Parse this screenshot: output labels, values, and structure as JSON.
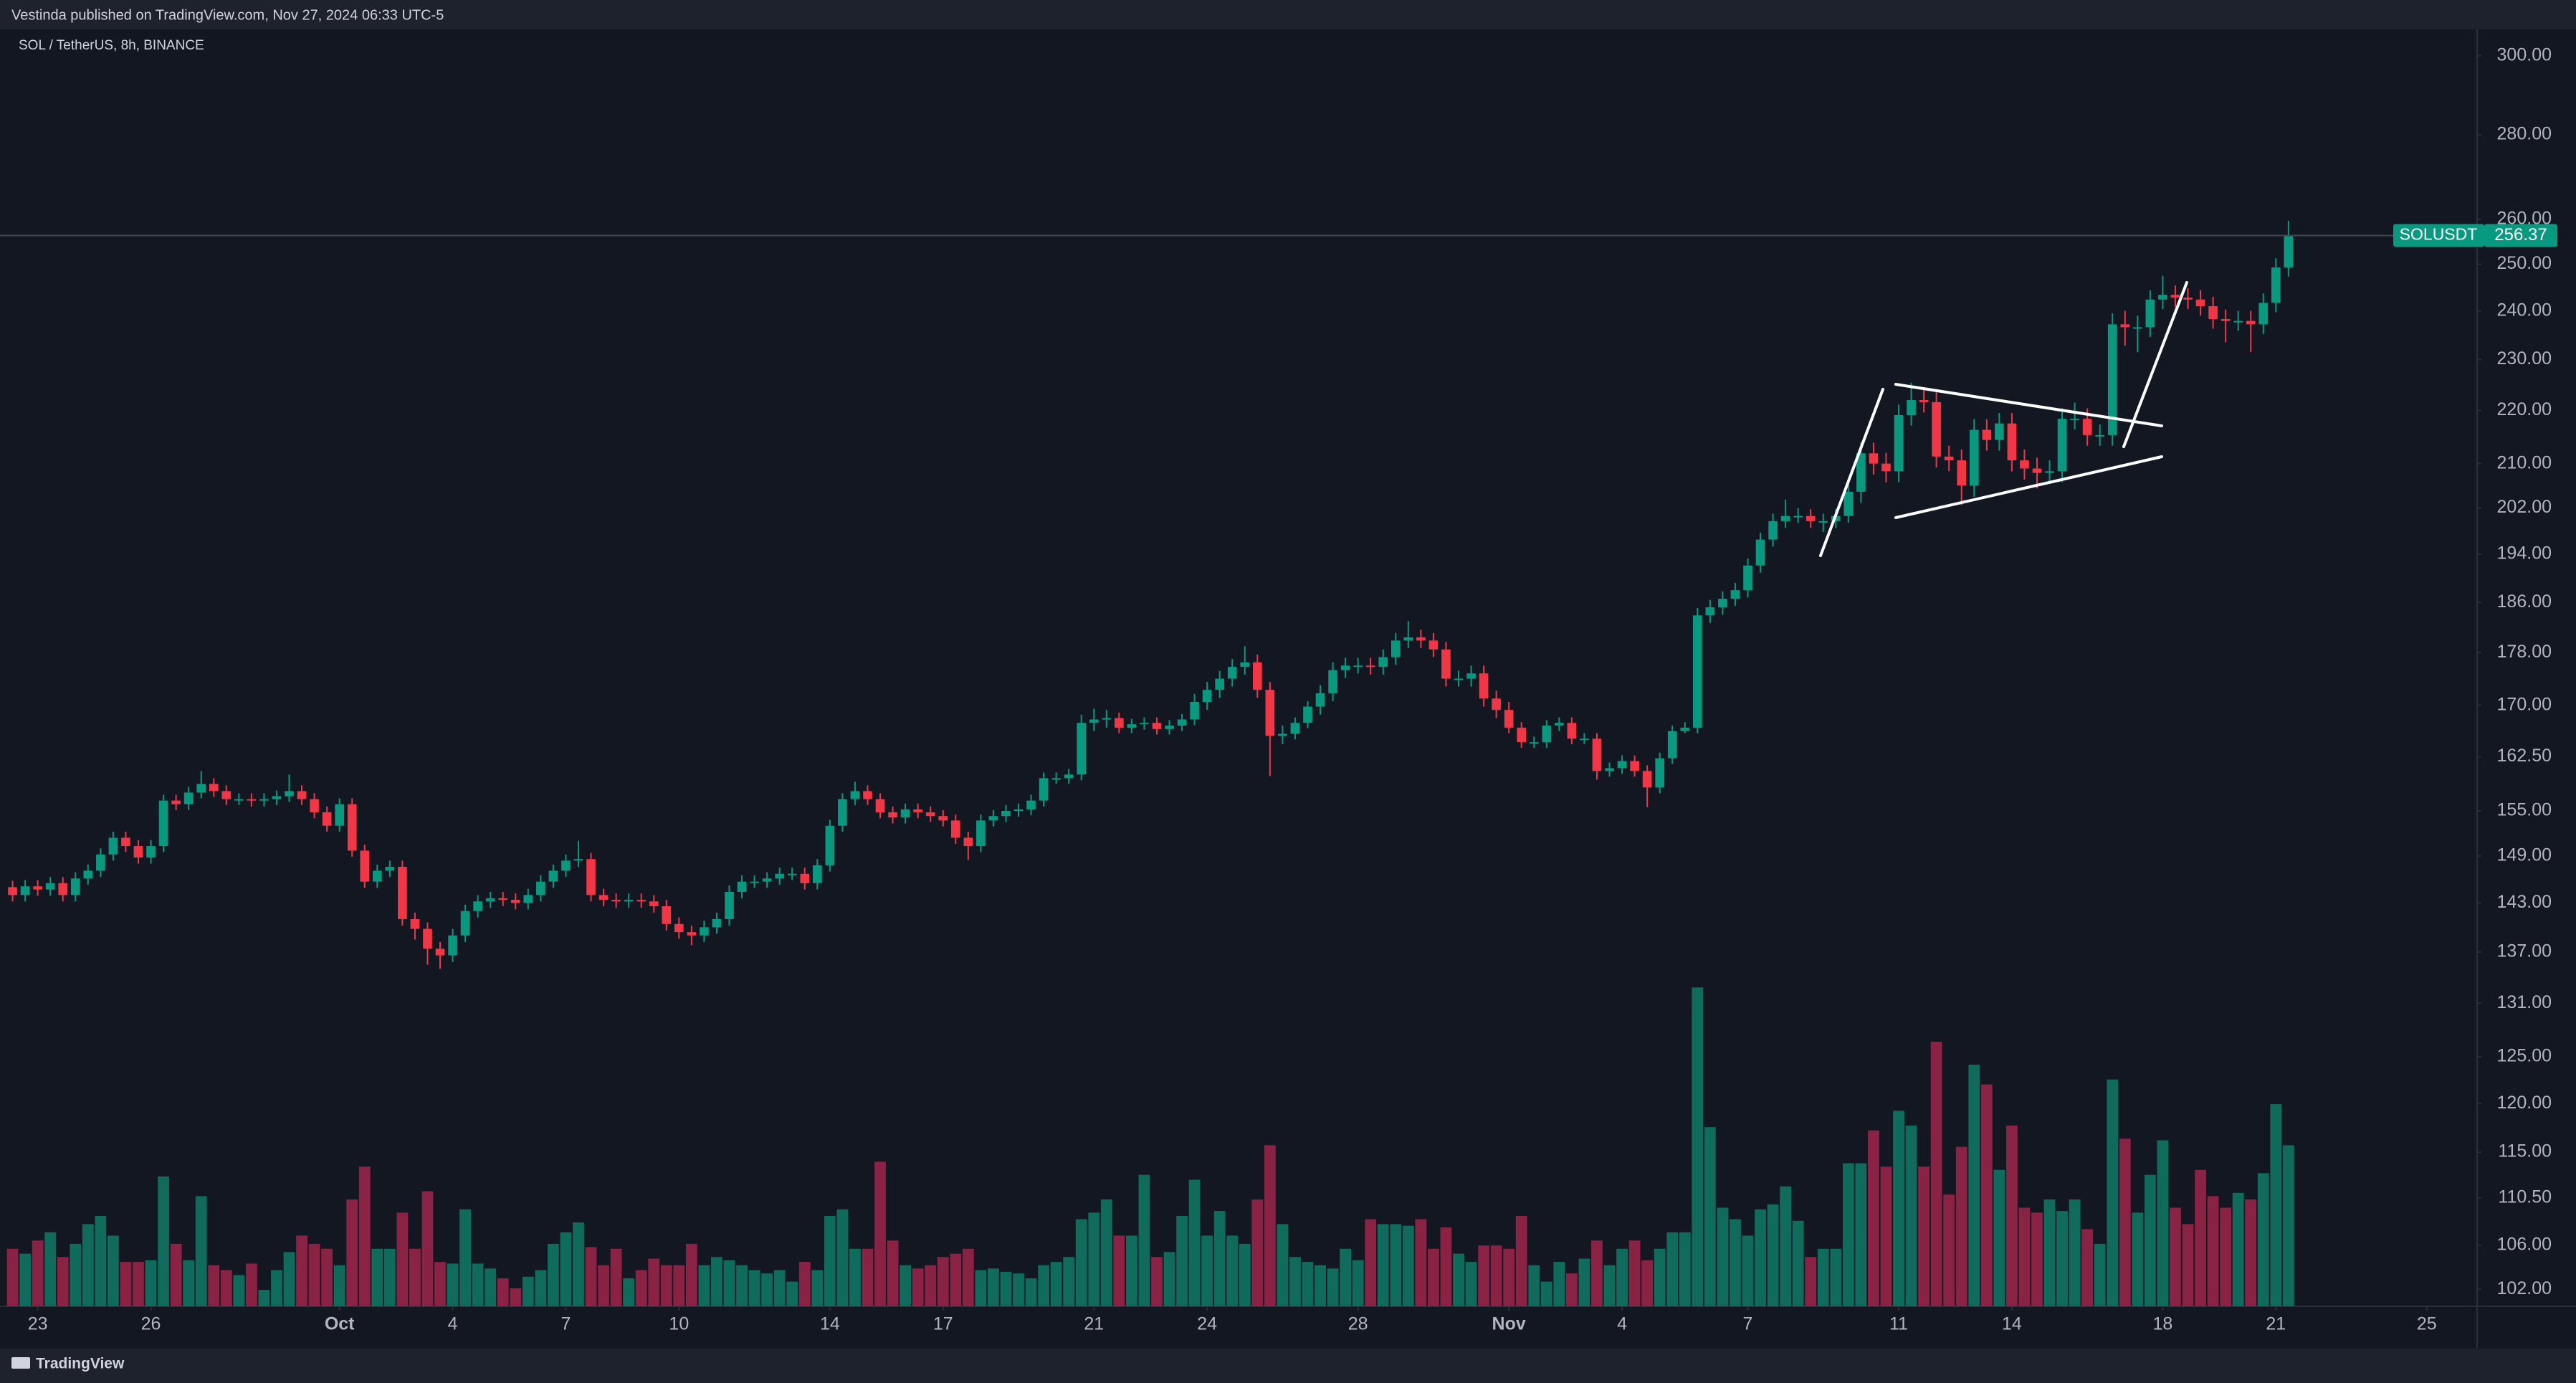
{
  "header": {
    "attribution": "Vestinda published on TradingView.com, Nov 27, 2024 06:33 UTC-5"
  },
  "chart_data": {
    "type": "candlestick",
    "title": "SOL / TetherUS, 8h, BINANCE",
    "open": [
      145.0,
      144.0,
      145.1,
      144.7,
      145.5,
      144.0,
      146.1,
      147.1,
      149.2,
      151.4,
      150.3,
      148.8,
      150.3,
      156.4,
      155.9,
      157.5,
      158.7,
      157.7,
      156.6,
      156.6,
      156.4,
      156.6,
      157.0,
      157.7,
      156.6,
      154.8,
      153.0,
      155.9,
      149.7,
      145.7,
      147.1,
      147.6,
      141.0,
      139.8,
      137.4,
      136.6,
      139.0,
      142.0,
      143.2,
      143.6,
      143.4,
      143.0,
      144.0,
      145.7,
      147.1,
      148.4,
      148.6,
      144.0,
      143.4,
      143.2,
      143.4,
      143.2,
      142.6,
      140.4,
      139.4,
      139.0,
      140.0,
      141.0,
      144.4,
      145.7,
      145.7,
      146.1,
      146.7,
      146.7,
      145.5,
      147.8,
      153.0,
      156.6,
      157.7,
      156.6,
      154.8,
      154.1,
      155.2,
      154.8,
      154.3,
      153.7,
      151.4,
      150.3,
      153.7,
      154.3,
      155.0,
      155.2,
      156.4,
      159.5,
      159.5,
      160.0,
      167.4,
      167.9,
      168.1,
      166.7,
      167.2,
      167.4,
      166.5,
      167.0,
      167.9,
      170.5,
      172.3,
      174.0,
      175.8,
      176.5,
      172.3,
      165.5,
      165.8,
      167.4,
      169.8,
      171.8,
      175.3,
      176.0,
      176.0,
      175.8,
      177.3,
      179.9,
      180.4,
      179.9,
      178.5,
      174.0,
      174.0,
      174.8,
      171.0,
      169.3,
      166.7,
      164.6,
      164.6,
      167.0,
      167.4,
      165.1,
      165.1,
      160.5,
      160.9,
      161.9,
      160.5,
      158.2,
      162.3,
      166.2,
      166.7,
      183.9,
      185.2,
      186.6,
      188.0,
      192.1,
      196.5,
      199.7,
      200.6,
      200.6,
      199.7,
      199.7,
      200.6,
      204.9,
      211.9,
      210.0,
      208.6,
      219.1,
      222.0,
      221.6,
      211.3,
      210.6,
      206.0,
      216.3,
      214.4,
      217.5,
      210.6,
      209.1,
      208.3,
      208.6,
      218.4,
      218.4,
      215.3,
      215.3,
      237.2,
      236.6,
      236.6,
      242.4,
      243.4,
      242.8,
      242.4,
      241.0,
      238.3,
      237.9,
      237.9,
      237.2,
      241.7,
      249.3
    ],
    "high": [
      145.8,
      145.9,
      145.9,
      146.3,
      146.3,
      146.9,
      147.9,
      150.0,
      152.2,
      152.2,
      151.1,
      151.1,
      157.2,
      157.2,
      158.3,
      160.5,
      159.5,
      158.5,
      157.4,
      157.4,
      157.4,
      157.8,
      160.0,
      158.5,
      157.4,
      155.6,
      156.7,
      156.7,
      150.5,
      147.9,
      148.4,
      148.4,
      141.8,
      140.6,
      138.2,
      139.8,
      142.8,
      144.0,
      144.4,
      144.4,
      144.2,
      144.8,
      146.5,
      147.9,
      149.2,
      151.0,
      149.4,
      144.8,
      144.2,
      144.2,
      144.2,
      144.0,
      143.4,
      141.2,
      140.2,
      140.8,
      141.8,
      145.2,
      146.5,
      146.5,
      146.9,
      147.5,
      147.5,
      147.5,
      148.6,
      153.8,
      157.4,
      159.0,
      158.5,
      157.4,
      155.6,
      156.0,
      156.0,
      155.6,
      155.1,
      154.5,
      152.2,
      154.5,
      155.1,
      155.8,
      156.0,
      157.2,
      160.3,
      160.3,
      160.8,
      168.6,
      169.5,
      169.3,
      168.9,
      168.0,
      168.2,
      168.2,
      167.8,
      168.7,
      171.7,
      173.5,
      175.2,
      177.0,
      179.0,
      177.7,
      173.5,
      167.0,
      168.2,
      170.6,
      173.0,
      176.5,
      177.2,
      177.2,
      177.2,
      178.5,
      181.1,
      183.0,
      181.6,
      181.1,
      179.7,
      175.2,
      176.0,
      176.0,
      172.2,
      170.5,
      167.5,
      165.4,
      167.8,
      168.2,
      168.2,
      165.9,
      165.9,
      161.7,
      162.7,
      162.7,
      161.3,
      163.1,
      167.0,
      167.5,
      185.1,
      186.4,
      187.8,
      189.2,
      193.3,
      197.7,
      201.0,
      203.5,
      202.0,
      201.8,
      201.0,
      201.8,
      206.9,
      213.9,
      213.9,
      212.0,
      221.1,
      225.4,
      224.0,
      223.6,
      213.3,
      212.6,
      218.3,
      218.3,
      219.5,
      219.5,
      212.6,
      211.1,
      210.6,
      220.4,
      221.5,
      220.4,
      217.3,
      239.5,
      240.0,
      239.0,
      244.4,
      247.5,
      245.4,
      244.8,
      244.4,
      243.0,
      240.3,
      240.0,
      240.0,
      243.7,
      251.3,
      259.7
    ],
    "low": [
      143.2,
      143.2,
      143.9,
      143.9,
      143.2,
      143.2,
      145.3,
      146.3,
      148.4,
      149.5,
      148.0,
      148.0,
      149.5,
      155.1,
      155.1,
      156.7,
      156.9,
      155.8,
      155.8,
      155.6,
      155.6,
      155.8,
      156.2,
      155.8,
      154.0,
      152.2,
      152.2,
      148.9,
      144.9,
      144.9,
      146.3,
      140.2,
      138.5,
      135.5,
      135.0,
      135.8,
      138.2,
      141.2,
      142.4,
      142.6,
      142.2,
      142.2,
      143.2,
      144.9,
      146.3,
      147.6,
      143.2,
      142.6,
      142.4,
      142.4,
      142.4,
      141.8,
      139.6,
      138.6,
      137.8,
      138.2,
      139.2,
      140.2,
      143.6,
      144.9,
      144.9,
      145.3,
      145.9,
      144.7,
      144.7,
      147.0,
      152.2,
      155.8,
      155.8,
      154.0,
      153.3,
      153.3,
      154.0,
      153.5,
      152.9,
      150.6,
      148.5,
      149.5,
      152.9,
      153.5,
      154.2,
      154.4,
      155.6,
      158.7,
      158.7,
      159.2,
      166.2,
      166.7,
      165.9,
      165.9,
      166.4,
      165.7,
      165.7,
      166.2,
      167.1,
      169.3,
      171.1,
      172.8,
      174.6,
      171.1,
      159.8,
      164.3,
      165.0,
      166.6,
      168.6,
      170.6,
      174.1,
      174.8,
      174.6,
      174.6,
      176.1,
      178.7,
      178.7,
      177.3,
      172.8,
      172.8,
      172.8,
      169.8,
      168.1,
      165.9,
      163.8,
      163.8,
      163.8,
      166.2,
      164.3,
      164.3,
      159.3,
      159.7,
      160.1,
      159.7,
      155.5,
      157.4,
      161.5,
      165.9,
      165.9,
      182.7,
      184.0,
      185.4,
      186.8,
      190.9,
      195.3,
      198.5,
      199.4,
      198.5,
      197.8,
      198.5,
      199.4,
      202.9,
      208.0,
      206.6,
      206.6,
      217.1,
      219.6,
      209.3,
      208.6,
      202.5,
      204.0,
      212.4,
      212.4,
      208.6,
      207.1,
      205.5,
      206.3,
      206.6,
      216.4,
      213.3,
      213.3,
      213.3,
      232.8,
      231.5,
      234.6,
      240.4,
      240.8,
      240.4,
      239.0,
      236.3,
      233.5,
      235.9,
      231.5,
      235.2,
      239.7,
      247.3
    ],
    "close": [
      144.0,
      145.1,
      144.7,
      145.5,
      144.0,
      146.1,
      147.1,
      149.2,
      151.4,
      150.3,
      148.8,
      150.3,
      156.4,
      155.9,
      157.5,
      158.7,
      157.7,
      156.6,
      156.6,
      156.4,
      156.6,
      157.0,
      157.7,
      156.6,
      154.8,
      153.0,
      155.9,
      149.7,
      145.7,
      147.1,
      147.6,
      141.0,
      139.8,
      137.4,
      136.6,
      139.0,
      142.0,
      143.2,
      143.6,
      143.4,
      143.0,
      144.0,
      145.7,
      147.1,
      148.4,
      148.6,
      144.0,
      143.4,
      143.2,
      143.4,
      143.2,
      142.6,
      140.4,
      139.4,
      139.0,
      140.0,
      141.0,
      144.4,
      145.7,
      145.7,
      146.1,
      146.7,
      146.7,
      145.5,
      147.8,
      153.0,
      156.6,
      157.7,
      156.6,
      154.8,
      154.1,
      155.2,
      154.8,
      154.3,
      153.7,
      151.4,
      150.3,
      153.7,
      154.3,
      155.0,
      155.2,
      156.4,
      159.5,
      159.5,
      160.0,
      167.4,
      167.9,
      168.1,
      166.7,
      167.2,
      167.4,
      166.5,
      167.0,
      167.9,
      170.5,
      172.3,
      174.0,
      175.8,
      176.5,
      172.3,
      165.5,
      165.8,
      167.4,
      169.8,
      171.8,
      175.3,
      176.0,
      176.0,
      175.8,
      177.3,
      179.9,
      180.4,
      179.9,
      178.5,
      174.0,
      174.0,
      174.8,
      171.0,
      169.3,
      166.7,
      164.6,
      164.6,
      167.0,
      167.4,
      165.1,
      165.1,
      160.5,
      160.9,
      161.9,
      160.5,
      158.2,
      162.3,
      166.2,
      166.7,
      183.9,
      185.2,
      186.6,
      188.0,
      192.1,
      196.5,
      199.7,
      200.6,
      200.6,
      199.7,
      199.7,
      200.6,
      204.9,
      211.9,
      210.0,
      208.6,
      219.1,
      222.0,
      221.6,
      211.3,
      210.6,
      206.0,
      216.3,
      214.4,
      217.5,
      210.6,
      209.1,
      208.3,
      208.6,
      218.4,
      218.4,
      215.3,
      215.3,
      237.2,
      236.6,
      236.6,
      242.4,
      243.4,
      242.8,
      242.4,
      241.0,
      238.3,
      237.9,
      237.9,
      237.2,
      241.7,
      249.3,
      256.37
    ],
    "volume": [
      35,
      32,
      40,
      45,
      30,
      38,
      50,
      55,
      43,
      27,
      27,
      28,
      79,
      38,
      28,
      67,
      25,
      22,
      19,
      26,
      10,
      22,
      33,
      43,
      38,
      35,
      25,
      65,
      85,
      35,
      35,
      57,
      35,
      70,
      27,
      26,
      59,
      26,
      23,
      17,
      11,
      18,
      22,
      38,
      45,
      51,
      36,
      25,
      35,
      17,
      22,
      29,
      25,
      25,
      38,
      25,
      30,
      28,
      25,
      22,
      20,
      22,
      15,
      27,
      22,
      55,
      59,
      35,
      35,
      88,
      40,
      25,
      23,
      25,
      30,
      32,
      35,
      22,
      23,
      21,
      20,
      17,
      25,
      27,
      30,
      53,
      57,
      65,
      43,
      43,
      80,
      30,
      33,
      55,
      77,
      43,
      58,
      43,
      38,
      65,
      98,
      50,
      30,
      27,
      25,
      23,
      35,
      28,
      53,
      50,
      50,
      49,
      53,
      35,
      48,
      32,
      27,
      37,
      37,
      35,
      55,
      25,
      15,
      27,
      20,
      29,
      40,
      25,
      35,
      40,
      28,
      35,
      45,
      45,
      194,
      109,
      60,
      53,
      43,
      59,
      62,
      73,
      52,
      30,
      35,
      35,
      87,
      87,
      107,
      85,
      119,
      110,
      85,
      161,
      68,
      97,
      147,
      135,
      83,
      110,
      60,
      57,
      65,
      58,
      65,
      47,
      38,
      138,
      102,
      57,
      80,
      101,
      60,
      50,
      83,
      67,
      60,
      69,
      65,
      81,
      123,
      98
    ],
    "up_color": "#089981",
    "down_color": "#f23645",
    "volume_up_color": "#0f6b5c",
    "volume_down_color": "#8a2244",
    "log_scale": true,
    "grid": false,
    "xlim": [
      -1,
      196
    ],
    "xticks": [
      {
        "value": 2,
        "label": "23"
      },
      {
        "value": 11,
        "label": "26"
      },
      {
        "value": 26,
        "label": "Oct"
      },
      {
        "value": 35,
        "label": "4"
      },
      {
        "value": 44,
        "label": "7"
      },
      {
        "value": 53,
        "label": "10"
      },
      {
        "value": 65,
        "label": "14"
      },
      {
        "value": 74,
        "label": "17"
      },
      {
        "value": 86,
        "label": "21"
      },
      {
        "value": 95,
        "label": "24"
      },
      {
        "value": 107,
        "label": "28"
      },
      {
        "value": 119,
        "label": "Nov"
      },
      {
        "value": 128,
        "label": "4"
      },
      {
        "value": 138,
        "label": "7"
      },
      {
        "value": 150,
        "label": "11"
      },
      {
        "value": 159,
        "label": "14"
      },
      {
        "value": 171,
        "label": "18"
      },
      {
        "value": 180,
        "label": "21"
      },
      {
        "value": 192,
        "label": "25"
      }
    ],
    "ylim": [
      100.5,
      307
    ],
    "yticks": [
      {
        "value": 300,
        "label": "300.00"
      },
      {
        "value": 280,
        "label": "280.00"
      },
      {
        "value": 260,
        "label": "260.00"
      },
      {
        "value": 250,
        "label": "250.00"
      },
      {
        "value": 240,
        "label": "240.00"
      },
      {
        "value": 230,
        "label": "230.00"
      },
      {
        "value": 220,
        "label": "220.00"
      },
      {
        "value": 210,
        "label": "210.00"
      },
      {
        "value": 202,
        "label": "202.00"
      },
      {
        "value": 194,
        "label": "194.00"
      },
      {
        "value": 186,
        "label": "186.00"
      },
      {
        "value": 178,
        "label": "178.00"
      },
      {
        "value": 170,
        "label": "170.00"
      },
      {
        "value": 162.5,
        "label": "162.50"
      },
      {
        "value": 155,
        "label": "155.00"
      },
      {
        "value": 149,
        "label": "149.00"
      },
      {
        "value": 143,
        "label": "143.00"
      },
      {
        "value": 137,
        "label": "137.00"
      },
      {
        "value": 131,
        "label": "131.00"
      },
      {
        "value": 125,
        "label": "125.00"
      },
      {
        "value": 120,
        "label": "120.00"
      },
      {
        "value": 115,
        "label": "115.00"
      },
      {
        "value": 110.5,
        "label": "110.50"
      },
      {
        "value": 106,
        "label": "106.00"
      },
      {
        "value": 102,
        "label": "102.00"
      }
    ],
    "volume_lim": [
      0,
      777
    ],
    "last_price": {
      "label": "SOLUSDT",
      "value": 256.37
    }
  },
  "footer": {
    "brand": "TradingView"
  }
}
